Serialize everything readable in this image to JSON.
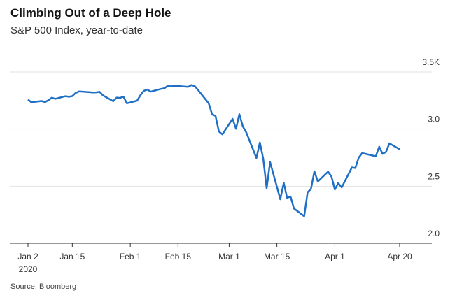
{
  "chart_data": {
    "type": "line",
    "title": "Climbing Out of a Deep Hole",
    "subtitle": "S&P 500 Index, year-to-date",
    "source": "Source: Bloomberg",
    "year_label": "2020",
    "color": "#1f6fc5",
    "grid": true,
    "xlim": [
      "2020-01-02",
      "2020-04-20"
    ],
    "xticks": [
      {
        "value": "2020-01-02",
        "label": "Jan 2"
      },
      {
        "value": "2020-01-15",
        "label": "Jan 15"
      },
      {
        "value": "2020-02-01",
        "label": "Feb 1"
      },
      {
        "value": "2020-02-15",
        "label": "Feb 15"
      },
      {
        "value": "2020-03-01",
        "label": "Mar 1"
      },
      {
        "value": "2020-03-15",
        "label": "Mar 15"
      },
      {
        "value": "2020-04-01",
        "label": "Apr 1"
      },
      {
        "value": "2020-04-20",
        "label": "Apr 20"
      }
    ],
    "ylim": [
      2.0,
      3.5
    ],
    "yticks": [
      {
        "value": 2.0,
        "label": "2.0"
      },
      2.5,
      {
        "value": 3.0,
        "label": "3.0"
      },
      {
        "value": 3.5,
        "label": "3.5K"
      }
    ],
    "x": [
      "2020-01-02",
      "2020-01-03",
      "2020-01-06",
      "2020-01-07",
      "2020-01-08",
      "2020-01-09",
      "2020-01-10",
      "2020-01-13",
      "2020-01-14",
      "2020-01-15",
      "2020-01-16",
      "2020-01-17",
      "2020-01-21",
      "2020-01-22",
      "2020-01-23",
      "2020-01-24",
      "2020-01-27",
      "2020-01-28",
      "2020-01-29",
      "2020-01-30",
      "2020-01-31",
      "2020-02-03",
      "2020-02-04",
      "2020-02-05",
      "2020-02-06",
      "2020-02-07",
      "2020-02-10",
      "2020-02-11",
      "2020-02-12",
      "2020-02-13",
      "2020-02-14",
      "2020-02-18",
      "2020-02-19",
      "2020-02-20",
      "2020-02-21",
      "2020-02-24",
      "2020-02-25",
      "2020-02-26",
      "2020-02-27",
      "2020-02-28",
      "2020-03-02",
      "2020-03-03",
      "2020-03-04",
      "2020-03-05",
      "2020-03-06",
      "2020-03-09",
      "2020-03-10",
      "2020-03-11",
      "2020-03-12",
      "2020-03-13",
      "2020-03-16",
      "2020-03-17",
      "2020-03-18",
      "2020-03-19",
      "2020-03-20",
      "2020-03-23",
      "2020-03-24",
      "2020-03-25",
      "2020-03-26",
      "2020-03-27",
      "2020-03-30",
      "2020-03-31",
      "2020-04-01",
      "2020-04-02",
      "2020-04-03",
      "2020-04-06",
      "2020-04-07",
      "2020-04-08",
      "2020-04-09",
      "2020-04-13",
      "2020-04-14",
      "2020-04-15",
      "2020-04-16",
      "2020-04-17",
      "2020-04-20"
    ],
    "series": [
      {
        "name": "S&P 500 Index",
        "color": "#1f6fc5",
        "values": [
          3.258,
          3.235,
          3.246,
          3.237,
          3.253,
          3.275,
          3.265,
          3.288,
          3.283,
          3.289,
          3.317,
          3.33,
          3.321,
          3.322,
          3.326,
          3.295,
          3.244,
          3.276,
          3.273,
          3.284,
          3.226,
          3.249,
          3.298,
          3.335,
          3.346,
          3.328,
          3.352,
          3.358,
          3.379,
          3.374,
          3.38,
          3.37,
          3.386,
          3.373,
          3.338,
          3.226,
          3.128,
          3.116,
          2.979,
          2.954,
          3.09,
          3.003,
          3.13,
          3.024,
          2.972,
          2.747,
          2.882,
          2.741,
          2.481,
          2.711,
          2.386,
          2.529,
          2.398,
          2.409,
          2.305,
          2.237,
          2.447,
          2.476,
          2.63,
          2.541,
          2.627,
          2.585,
          2.471,
          2.527,
          2.489,
          2.664,
          2.659,
          2.75,
          2.79,
          2.762,
          2.846,
          2.783,
          2.8,
          2.875,
          2.823
        ]
      }
    ]
  }
}
